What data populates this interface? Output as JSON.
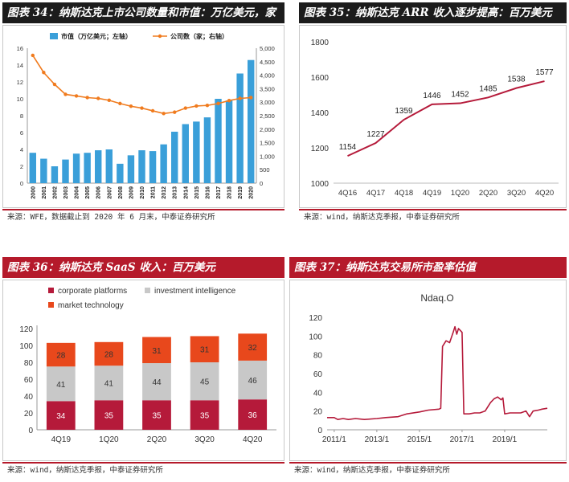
{
  "panels": [
    {
      "title": "图表 34：纳斯达克上市公司数量和市值：万亿美元，家",
      "source": "来源：WFE，数据截止到 2020 年 6 月末，中泰证券研究所"
    },
    {
      "title": "图表 35：纳斯达克 ARR 收入逐步提高：百万美元",
      "source": "来源：wind，纳斯达克季报，中泰证券研究所"
    },
    {
      "title": "图表 36：纳斯达克 SaaS 收入：百万美元",
      "source": "来源：wind，纳斯达克季报，中泰证券研究所"
    },
    {
      "title": "图表 37：纳斯达克交易所市盈率估值",
      "source": "来源：wind，纳斯达克季报，中泰证券研究所"
    }
  ],
  "colors": {
    "blue": "#3a9fd9",
    "orange": "#f07b1e",
    "crimson": "#b51a3a",
    "gray": "#c8c8c8",
    "redorange": "#e8481c"
  },
  "chart_data": [
    {
      "type": "bar",
      "title": "",
      "categories": [
        "2000",
        "2001",
        "2002",
        "2003",
        "2004",
        "2005",
        "2006",
        "2007",
        "2008",
        "2009",
        "2010",
        "2011",
        "2012",
        "2013",
        "2014",
        "2015",
        "2016",
        "2017",
        "2018",
        "2019",
        "2020"
      ],
      "series": [
        {
          "name": "市值（万亿美元；左轴）",
          "kind": "bar",
          "axis": "left",
          "values": [
            3.6,
            2.9,
            2.0,
            2.8,
            3.5,
            3.6,
            3.9,
            4.0,
            2.3,
            3.3,
            3.9,
            3.8,
            4.6,
            6.1,
            7.0,
            7.3,
            7.8,
            10.0,
            9.8,
            13.0,
            14.6
          ]
        },
        {
          "name": "公司数（家；右轴）",
          "kind": "line",
          "axis": "right",
          "values": [
            4734,
            4100,
            3660,
            3290,
            3230,
            3170,
            3140,
            3070,
            2950,
            2850,
            2780,
            2680,
            2580,
            2630,
            2780,
            2860,
            2880,
            2950,
            3060,
            3140,
            3170
          ]
        }
      ],
      "yleft": {
        "min": 0,
        "max": 16,
        "ticks": [
          "0",
          "2",
          "4",
          "6",
          "8",
          "10",
          "12",
          "14",
          "16"
        ]
      },
      "yright": {
        "min": 0,
        "max": 5000,
        "ticks": [
          "0",
          "500",
          "1,000",
          "1,500",
          "2,000",
          "2,500",
          "3,000",
          "3,500",
          "4,000",
          "4,500",
          "5,000"
        ]
      },
      "legend": "top"
    },
    {
      "type": "line",
      "title": "",
      "categories": [
        "4Q16",
        "4Q17",
        "4Q18",
        "4Q19",
        "1Q20",
        "2Q20",
        "3Q20",
        "4Q20"
      ],
      "series": [
        {
          "name": "",
          "values": [
            1154,
            1227,
            1359,
            1446,
            1452,
            1485,
            1538,
            1577
          ]
        }
      ],
      "labels": [
        "1154",
        "1227",
        "1359",
        "1446",
        "1452",
        "1485",
        "1538",
        "1577"
      ],
      "ylim": [
        1000,
        1800
      ],
      "yticks": [
        "1000",
        "1200",
        "1400",
        "1600",
        "1800"
      ]
    },
    {
      "type": "bar",
      "stacked": true,
      "title": "",
      "categories": [
        "4Q19",
        "1Q20",
        "2Q20",
        "3Q20",
        "4Q20"
      ],
      "series": [
        {
          "name": "corporate platforms",
          "values": [
            34,
            35,
            35,
            35,
            36
          ],
          "labels": [
            "34",
            "35",
            "35",
            "35",
            "36"
          ]
        },
        {
          "name": "investment intelligence",
          "values": [
            41,
            41,
            44,
            45,
            46
          ],
          "labels": [
            "41",
            "41",
            "44",
            "45",
            "46"
          ]
        },
        {
          "name": "market technology",
          "values": [
            28,
            28,
            31,
            31,
            32
          ],
          "labels": [
            "28",
            "28",
            "31",
            "31",
            "32"
          ]
        }
      ],
      "ylim": [
        0,
        120
      ],
      "yticks": [
        "0",
        "20",
        "40",
        "60",
        "80",
        "100",
        "120"
      ],
      "legend": "top-left"
    },
    {
      "type": "line",
      "title": "Ndaq.O",
      "x_ticks": [
        "2011/1",
        "2013/1",
        "2015/1",
        "2017/1",
        "2019/1"
      ],
      "x_range": [
        "2010-09",
        "2021-01"
      ],
      "ylim": [
        0,
        120
      ],
      "yticks": [
        "0",
        "20",
        "40",
        "60",
        "80",
        "100",
        "120"
      ],
      "series": [
        {
          "name": "",
          "points": [
            [
              "2010-09",
              13
            ],
            [
              "2011-01",
              13
            ],
            [
              "2011-03",
              11
            ],
            [
              "2011-06",
              12
            ],
            [
              "2011-09",
              11
            ],
            [
              "2012-01",
              12
            ],
            [
              "2012-06",
              11
            ],
            [
              "2013-01",
              12
            ],
            [
              "2013-06",
              13
            ],
            [
              "2014-01",
              14
            ],
            [
              "2014-06",
              17
            ],
            [
              "2015-01",
              19
            ],
            [
              "2015-06",
              21
            ],
            [
              "2015-12",
              22
            ],
            [
              "2016-01",
              23
            ],
            [
              "2016-02",
              89
            ],
            [
              "2016-04",
              95
            ],
            [
              "2016-06",
              93
            ],
            [
              "2016-08",
              104
            ],
            [
              "2016-09",
              110
            ],
            [
              "2016-10",
              102
            ],
            [
              "2016-11",
              108
            ],
            [
              "2016-12",
              106
            ],
            [
              "2017-01",
              104
            ],
            [
              "2017-02",
              17
            ],
            [
              "2017-05",
              17
            ],
            [
              "2017-08",
              18
            ],
            [
              "2017-11",
              18
            ],
            [
              "2018-02",
              20
            ],
            [
              "2018-05",
              29
            ],
            [
              "2018-07",
              33
            ],
            [
              "2018-09",
              35
            ],
            [
              "2018-11",
              32
            ],
            [
              "2018-12",
              34
            ],
            [
              "2019-01",
              17
            ],
            [
              "2019-04",
              18
            ],
            [
              "2019-07",
              18
            ],
            [
              "2019-10",
              18
            ],
            [
              "2020-01",
              20
            ],
            [
              "2020-03",
              14
            ],
            [
              "2020-05",
              20
            ],
            [
              "2020-08",
              21
            ],
            [
              "2020-10",
              22
            ],
            [
              "2021-01",
              23
            ]
          ]
        }
      ]
    }
  ]
}
